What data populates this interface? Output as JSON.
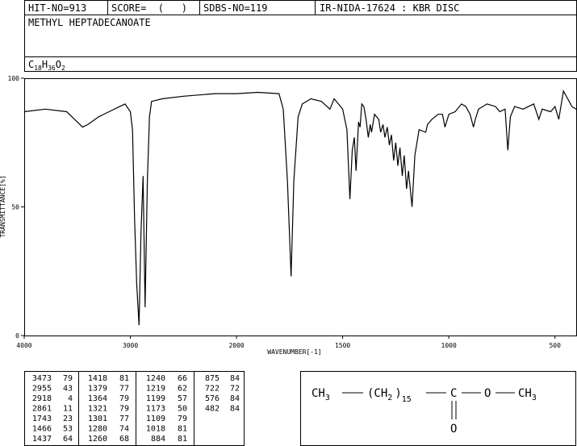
{
  "header": {
    "hit": "HIT-NO=913",
    "score": "SCORE=  (   )",
    "sdbs": "SDBS-NO=119",
    "source": "IR-NIDA-17624 : KBR DISC",
    "name": "METHYL HEPTADECANOATE",
    "formula": [
      "C",
      "18",
      "H",
      "36",
      "O",
      "2"
    ]
  },
  "chart_data": {
    "type": "line",
    "xlabel": "WAVENUMBER[-1]",
    "ylabel": "TRANSMITTANCE[%]",
    "xlim": [
      4000,
      400
    ],
    "x_scale_change": 2000,
    "ylim": [
      0,
      100
    ],
    "xticks": [
      4000,
      3000,
      2000,
      1500,
      1000,
      500
    ],
    "yticks": [
      0,
      50,
      100
    ],
    "series": [
      {
        "color": "#000000",
        "x": [
          4000,
          3800,
          3600,
          3500,
          3450,
          3400,
          3300,
          3200,
          3100,
          3050,
          3000,
          2980,
          2960,
          2940,
          2918,
          2900,
          2880,
          2861,
          2840,
          2820,
          2800,
          2700,
          2500,
          2200,
          2000,
          1900,
          1800,
          1780,
          1760,
          1743,
          1730,
          1710,
          1690,
          1650,
          1600,
          1560,
          1540,
          1500,
          1480,
          1466,
          1455,
          1445,
          1437,
          1425,
          1418,
          1410,
          1400,
          1390,
          1379,
          1370,
          1364,
          1350,
          1330,
          1321,
          1310,
          1301,
          1290,
          1280,
          1270,
          1260,
          1250,
          1240,
          1230,
          1219,
          1210,
          1199,
          1190,
          1173,
          1160,
          1140,
          1109,
          1100,
          1080,
          1050,
          1030,
          1018,
          1000,
          970,
          940,
          920,
          900,
          884,
          875,
          860,
          820,
          780,
          760,
          735,
          722,
          710,
          690,
          650,
          600,
          576,
          560,
          520,
          500,
          482,
          460,
          440,
          420,
          400
        ],
        "values": [
          87,
          88,
          87,
          83,
          81,
          82,
          85,
          87,
          89,
          90,
          87,
          80,
          45,
          20,
          4,
          40,
          62,
          11,
          60,
          85,
          91,
          92,
          93,
          94,
          94,
          94.5,
          94,
          88,
          60,
          23,
          60,
          85,
          90,
          92,
          91,
          88,
          92,
          88,
          80,
          53,
          72,
          77,
          64,
          83,
          81,
          90,
          89,
          84,
          77,
          82,
          79,
          86,
          84,
          79,
          82,
          77,
          81,
          74,
          78,
          68,
          75,
          66,
          73,
          62,
          70,
          57,
          64,
          50,
          70,
          80,
          79,
          82,
          84,
          86,
          86,
          81,
          86,
          87,
          90,
          89,
          86,
          81,
          84,
          88,
          90,
          89,
          87,
          88,
          72,
          85,
          89,
          88,
          90,
          84,
          88,
          87,
          89,
          84,
          95,
          92,
          89,
          88
        ]
      }
    ]
  },
  "peaks": [
    [
      3473,
      79
    ],
    [
      2955,
      43
    ],
    [
      2918,
      4
    ],
    [
      2861,
      11
    ],
    [
      1743,
      23
    ],
    [
      1466,
      53
    ],
    [
      1437,
      64
    ],
    [
      1418,
      81
    ],
    [
      1379,
      77
    ],
    [
      1364,
      79
    ],
    [
      1321,
      79
    ],
    [
      1301,
      77
    ],
    [
      1280,
      74
    ],
    [
      1260,
      68
    ],
    [
      1240,
      66
    ],
    [
      1219,
      62
    ],
    [
      1199,
      57
    ],
    [
      1173,
      50
    ],
    [
      1109,
      79
    ],
    [
      1018,
      81
    ],
    [
      884,
      81
    ],
    [
      875,
      84
    ],
    [
      722,
      72
    ],
    [
      576,
      84
    ],
    [
      482,
      84
    ]
  ],
  "structure": {
    "left": [
      "CH",
      "3"
    ],
    "chain": [
      "(CH",
      "2",
      ")",
      "15"
    ],
    "carbonyl_c": "C",
    "ester_o": "O",
    "right": [
      "CH",
      "3"
    ],
    "carbonyl_o": "O"
  }
}
